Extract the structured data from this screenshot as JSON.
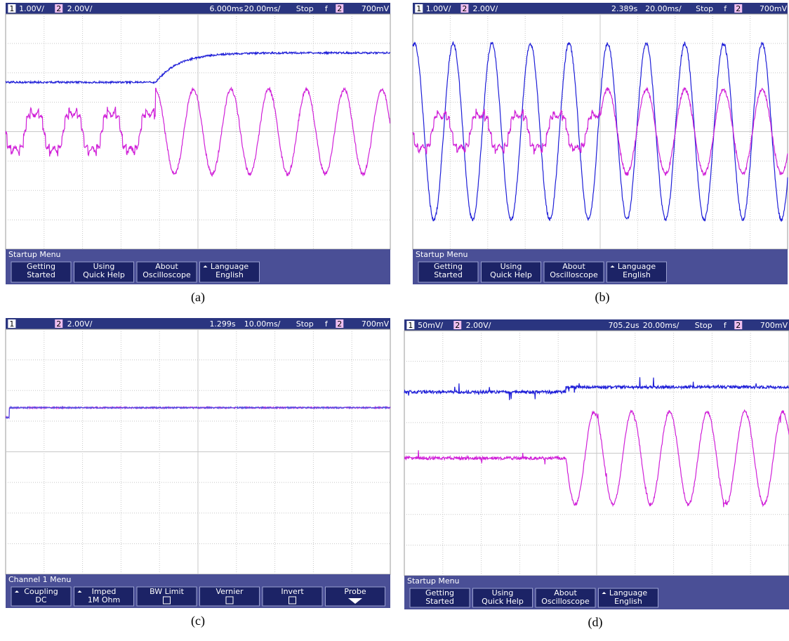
{
  "panels": [
    {
      "header": {
        "ch1": "1",
        "ch1_scale": "1.00V/",
        "ch2": "2",
        "ch2_scale": "2.00V/",
        "delay": "6.000ms",
        "timebase": "20.00ms/",
        "mode": "Stop",
        "slope": "f",
        "trig_ch": "2",
        "level": "700mV"
      },
      "menu_title": "Startup Menu",
      "buttons": [
        [
          "Getting",
          "Started"
        ],
        [
          "Using",
          "Quick Help"
        ],
        [
          "About",
          "Oscilloscope"
        ],
        [
          "Language",
          "English"
        ]
      ],
      "caption": "(a)"
    },
    {
      "header": {
        "ch1": "1",
        "ch1_scale": "1.00V/",
        "ch2": "2",
        "ch2_scale": "2.00V/",
        "delay": "2.389s",
        "timebase": "20.00ms/",
        "mode": "Stop",
        "slope": "f",
        "trig_ch": "2",
        "level": "700mV"
      },
      "menu_title": "Startup Menu",
      "buttons": [
        [
          "Getting",
          "Started"
        ],
        [
          "Using",
          "Quick Help"
        ],
        [
          "About",
          "Oscilloscope"
        ],
        [
          "Language",
          "English"
        ]
      ],
      "caption": "(b)"
    },
    {
      "header": {
        "ch1": "1",
        "ch2": "2",
        "ch2_scale": "2.00V/",
        "delay": "1.299s",
        "timebase": "10.00ms/",
        "mode": "Stop",
        "slope": "f",
        "trig_ch": "2",
        "level": "700mV"
      },
      "menu_title": "Channel 1 Menu",
      "buttons": [
        [
          "Coupling",
          "DC"
        ],
        [
          "Imped",
          "1M Ohm"
        ],
        [
          "BW Limit"
        ],
        [
          "Vernier"
        ],
        [
          "Invert"
        ],
        [
          "Probe"
        ]
      ],
      "caption": "(c)"
    },
    {
      "header": {
        "ch1": "1",
        "ch1_scale": "50mV/",
        "ch2": "2",
        "ch2_scale": "2.00V/",
        "delay": "705.2us",
        "timebase": "20.00ms/",
        "mode": "Stop",
        "slope": "f",
        "trig_ch": "2",
        "level": "700mV"
      },
      "menu_title": "Startup Menu",
      "buttons": [
        [
          "Getting",
          "Started"
        ],
        [
          "Using",
          "Quick Help"
        ],
        [
          "About",
          "Oscilloscope"
        ],
        [
          "Language",
          "English"
        ]
      ],
      "caption": "(d)"
    }
  ]
}
